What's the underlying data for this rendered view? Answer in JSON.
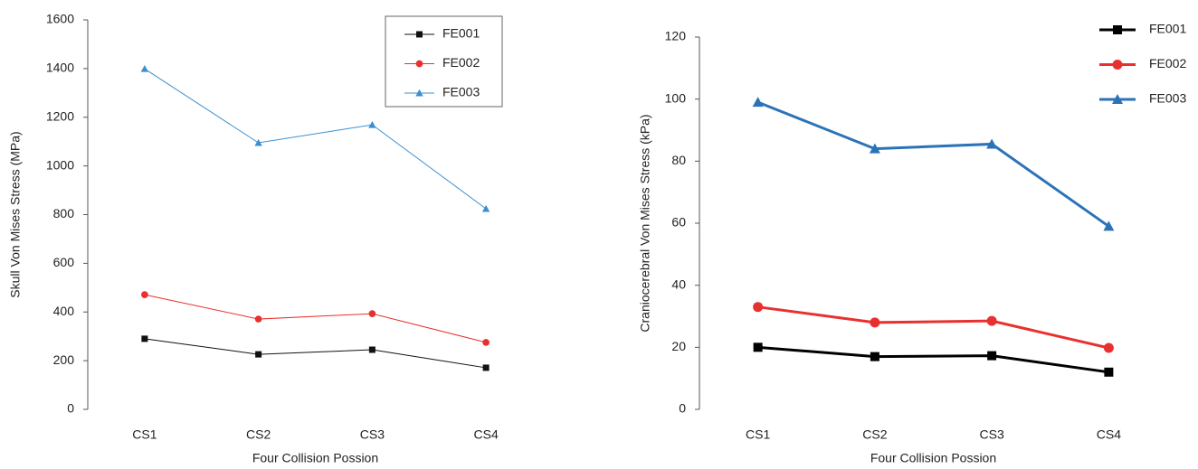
{
  "chart_data": [
    {
      "type": "line",
      "x_label": "Four Collision Possion",
      "y_label": "Skull Von Mises Stress (MPa)",
      "categories": [
        "CS1",
        "CS2",
        "CS3",
        "CS4"
      ],
      "ylim": [
        0,
        1600
      ],
      "yticks": [
        0,
        200,
        400,
        600,
        800,
        1000,
        1200,
        1400,
        1600
      ],
      "legend": "upper right",
      "legend_box": true,
      "series": [
        {
          "name": "FE001",
          "color": "#111111",
          "marker": "square",
          "values": [
            290,
            226,
            245,
            171
          ]
        },
        {
          "name": "FE002",
          "color": "#e8312f",
          "marker": "circle",
          "values": [
            471,
            371,
            393,
            275
          ]
        },
        {
          "name": "FE003",
          "color": "#3a8fd0",
          "marker": "triangle",
          "values": [
            1399,
            1095,
            1169,
            824
          ]
        }
      ]
    },
    {
      "type": "line",
      "x_label": "Four Collision Possion",
      "y_label": "Craniocerebral Von Mises Stress (kPa)",
      "categories": [
        "CS1",
        "CS2",
        "CS3",
        "CS4"
      ],
      "ylim": [
        0,
        120
      ],
      "yticks": [
        0,
        20,
        40,
        60,
        80,
        100,
        120
      ],
      "legend": "upper right",
      "legend_box": false,
      "series": [
        {
          "name": "FE001",
          "color": "#000000",
          "marker": "square",
          "values": [
            20,
            17,
            17.3,
            12
          ]
        },
        {
          "name": "FE002",
          "color": "#e8312f",
          "marker": "circle",
          "values": [
            33,
            28,
            28.5,
            19.8
          ]
        },
        {
          "name": "FE003",
          "color": "#2b73b8",
          "marker": "triangle",
          "values": [
            99,
            84,
            85.5,
            59
          ]
        }
      ]
    }
  ]
}
